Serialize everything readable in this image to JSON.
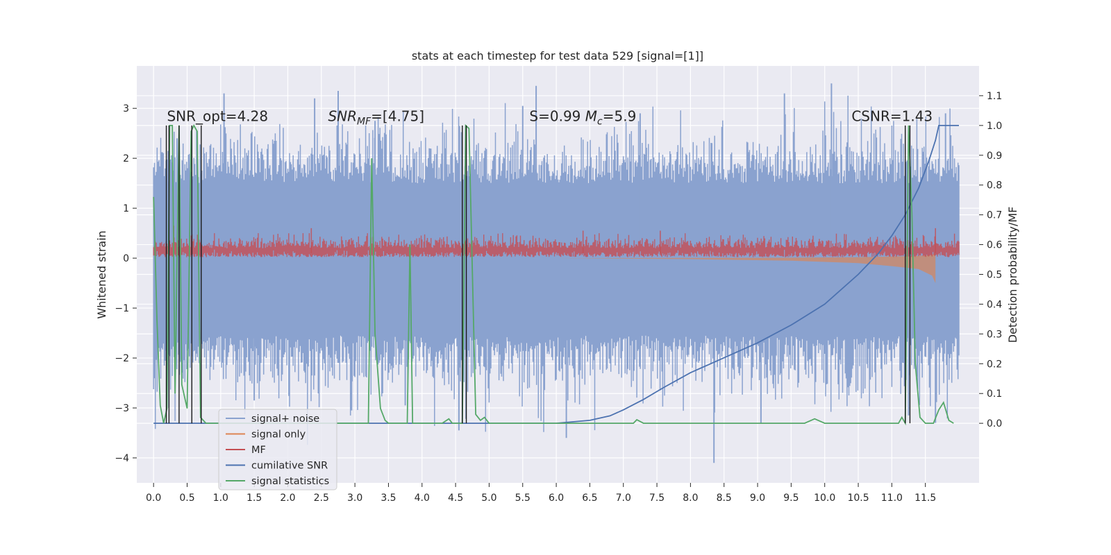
{
  "chart_data": {
    "type": "line",
    "title": "stats at each timestep for test data 529 [signal=[1]]",
    "xlabel": "",
    "ylabel": "Whitened strain",
    "y2label": "Detection probability/MF",
    "xlim": [
      -0.25,
      12.3
    ],
    "ylim": [
      -4.5,
      3.85
    ],
    "y2lim": [
      -0.2,
      1.2
    ],
    "x_ticks": [
      0.0,
      0.5,
      1.0,
      1.5,
      2.0,
      2.5,
      3.0,
      3.5,
      4.0,
      4.5,
      5.0,
      5.5,
      6.0,
      6.5,
      7.0,
      7.5,
      8.0,
      8.5,
      9.0,
      9.5,
      10.0,
      10.5,
      11.0,
      11.5
    ],
    "x_tick_labels": [
      "0.0",
      "0.5",
      "1.0",
      "1.5",
      "2.0",
      "2.5",
      "3.0",
      "3.5",
      "4.0",
      "4.5",
      "5.0",
      "5.5",
      "6.0",
      "6.5",
      "7.0",
      "7.5",
      "8.0",
      "8.5",
      "9.0",
      "9.5",
      "10.0",
      "10.5",
      "11.0",
      "11.5"
    ],
    "y_ticks": [
      3,
      2,
      1,
      0,
      -1,
      -2,
      -3,
      -4
    ],
    "y_tick_labels": [
      "3",
      "2",
      "1",
      "0",
      "−1",
      "−2",
      "−3",
      "−4"
    ],
    "y2_ticks": [
      1.1,
      1.0,
      0.9,
      0.8,
      0.7,
      0.6,
      0.5,
      0.4,
      0.3,
      0.2,
      0.1,
      0.0
    ],
    "y2_tick_labels": [
      "1.1",
      "1.0",
      "0.9",
      "0.8",
      "0.7",
      "0.6",
      "0.5",
      "0.4",
      "0.3",
      "0.2",
      "0.1",
      "0.0"
    ],
    "grid": true,
    "legend_position": "lower-left",
    "annotations": [
      {
        "text": "SNR_opt=4.28",
        "x": 0.2,
        "y2": 1.01
      },
      {
        "text": "SNR_MF=[4.75]",
        "x": 2.6,
        "y2": 1.01
      },
      {
        "text": "S=0.99   M_c=5.9",
        "x": 5.6,
        "y2": 1.01
      },
      {
        "text": "CSNR=1.43",
        "x": 10.4,
        "y2": 1.01
      }
    ],
    "colors": {
      "signal_noise": "#8aa2cf",
      "signal_only": "#dd8452",
      "mf": "#c44e52",
      "cumulative_snr": "#4c72b0",
      "signal_statistics": "#55a868",
      "vlines": "#1a1a1a",
      "background": "#eaeaf2"
    },
    "series": [
      {
        "name": "signal+ noise",
        "axis": "left",
        "band": {
          "x_start": 0.0,
          "x_end": 12.0,
          "low": -1.55,
          "high": 1.5
        },
        "peaks": [
          [
            0.35,
            2.4
          ],
          [
            1.05,
            3.3
          ],
          [
            2.4,
            3.2
          ],
          [
            2.75,
            3.35
          ],
          [
            3.3,
            2.75
          ],
          [
            4.35,
            2.2
          ],
          [
            5.5,
            3.05
          ],
          [
            5.7,
            3.45
          ],
          [
            7.25,
            2.9
          ],
          [
            9.4,
            3.3
          ],
          [
            10.1,
            3.5
          ],
          [
            11.8,
            2.9
          ],
          [
            1.5,
            -2.85
          ],
          [
            2.95,
            -3.05
          ],
          [
            3.75,
            -2.95
          ],
          [
            4.55,
            -3.45
          ],
          [
            6.15,
            -3.6
          ],
          [
            8.35,
            -4.1
          ],
          [
            9.05,
            -3.3
          ],
          [
            11.25,
            -3.15
          ],
          [
            11.65,
            -3.3
          ]
        ]
      },
      {
        "name": "signal only",
        "axis": "left",
        "envelope": [
          [
            0.0,
            0.0
          ],
          [
            4.0,
            0.0
          ],
          [
            6.0,
            0.0
          ],
          [
            8.0,
            -0.02
          ],
          [
            9.5,
            -0.05
          ],
          [
            10.5,
            -0.1
          ],
          [
            11.0,
            -0.16
          ],
          [
            11.4,
            -0.22
          ],
          [
            11.6,
            -0.35
          ],
          [
            11.65,
            -0.5
          ]
        ]
      },
      {
        "name": "MF",
        "axis": "left",
        "band": {
          "x_start": 0.0,
          "x_end": 12.0,
          "low": 0.0,
          "high": 0.5
        },
        "spikes": [
          [
            0.3,
            0.65
          ],
          [
            2.35,
            0.6
          ],
          [
            6.4,
            0.55
          ],
          [
            7.55,
            0.55
          ],
          [
            11.65,
            0.6
          ]
        ]
      },
      {
        "name": "cumilative SNR",
        "axis": "right",
        "points": [
          [
            0.0,
            0.0
          ],
          [
            6.0,
            0.0
          ],
          [
            6.5,
            0.01
          ],
          [
            6.8,
            0.025
          ],
          [
            7.0,
            0.045
          ],
          [
            7.3,
            0.08
          ],
          [
            7.6,
            0.12
          ],
          [
            8.0,
            0.17
          ],
          [
            8.5,
            0.22
          ],
          [
            9.0,
            0.27
          ],
          [
            9.5,
            0.33
          ],
          [
            10.0,
            0.4
          ],
          [
            10.5,
            0.5
          ],
          [
            10.8,
            0.57
          ],
          [
            11.0,
            0.63
          ],
          [
            11.2,
            0.7
          ],
          [
            11.4,
            0.79
          ],
          [
            11.55,
            0.88
          ],
          [
            11.65,
            0.95
          ],
          [
            11.7,
            1.0
          ],
          [
            12.0,
            1.0
          ]
        ]
      },
      {
        "name": "signal statistics",
        "axis": "right",
        "points": [
          [
            0.0,
            0.76
          ],
          [
            0.05,
            0.35
          ],
          [
            0.1,
            0.06
          ],
          [
            0.15,
            0.0
          ],
          [
            0.2,
            0.05
          ],
          [
            0.24,
            1.0
          ],
          [
            0.28,
            1.0
          ],
          [
            0.32,
            0.1
          ],
          [
            0.38,
            1.0
          ],
          [
            0.42,
            0.13
          ],
          [
            0.5,
            0.05
          ],
          [
            0.56,
            0.98
          ],
          [
            0.6,
            1.0
          ],
          [
            0.65,
            0.98
          ],
          [
            0.7,
            0.02
          ],
          [
            0.78,
            0.0
          ],
          [
            3.2,
            0.0
          ],
          [
            3.25,
            0.89
          ],
          [
            3.3,
            0.3
          ],
          [
            3.38,
            0.05
          ],
          [
            3.45,
            0.01
          ],
          [
            3.5,
            0.0
          ],
          [
            3.78,
            0.0
          ],
          [
            3.82,
            0.6
          ],
          [
            3.86,
            0.0
          ],
          [
            4.3,
            0.0
          ],
          [
            4.4,
            0.015
          ],
          [
            4.45,
            0.0
          ],
          [
            4.6,
            0.0
          ],
          [
            4.65,
            1.0
          ],
          [
            4.7,
            0.99
          ],
          [
            4.8,
            0.03
          ],
          [
            4.87,
            0.01
          ],
          [
            4.93,
            0.02
          ],
          [
            5.0,
            0.0
          ],
          [
            6.5,
            0.0
          ],
          [
            7.0,
            0.0
          ],
          [
            7.15,
            0.0
          ],
          [
            7.2,
            0.012
          ],
          [
            7.3,
            0.0
          ],
          [
            9.7,
            0.0
          ],
          [
            9.85,
            0.015
          ],
          [
            10.0,
            0.0
          ],
          [
            11.1,
            0.0
          ],
          [
            11.15,
            0.02
          ],
          [
            11.2,
            0.0
          ],
          [
            11.25,
            1.0
          ],
          [
            11.3,
            0.7
          ],
          [
            11.35,
            0.2
          ],
          [
            11.42,
            0.02
          ],
          [
            11.5,
            0.0
          ],
          [
            11.62,
            0.0
          ],
          [
            11.7,
            0.045
          ],
          [
            11.77,
            0.07
          ],
          [
            11.85,
            0.01
          ],
          [
            11.92,
            0.0
          ]
        ]
      }
    ],
    "vlines": [
      0.19,
      0.23,
      0.38,
      0.57,
      0.71,
      4.6,
      4.66,
      11.2,
      11.27
    ]
  }
}
